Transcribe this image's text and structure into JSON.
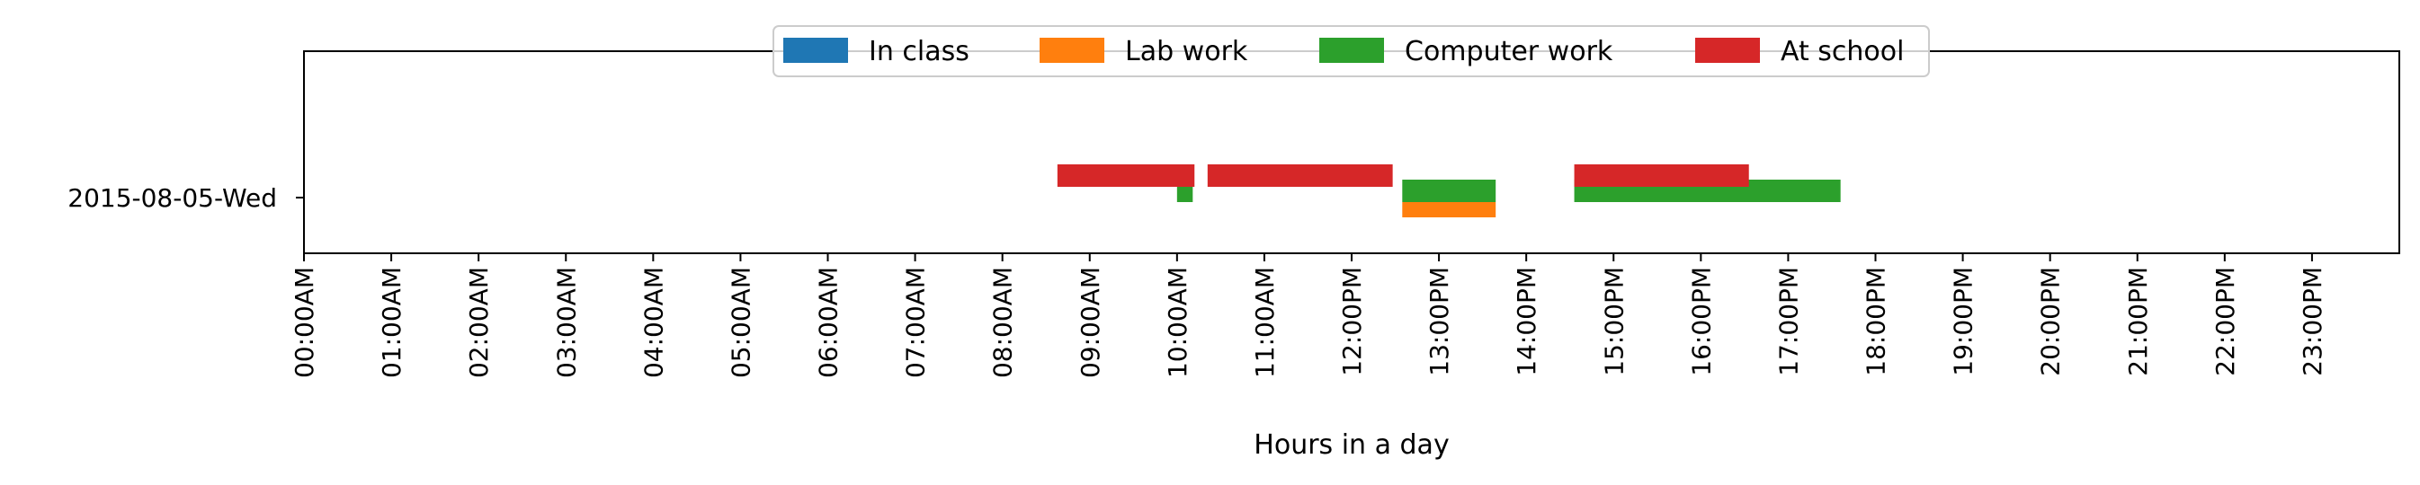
{
  "chart_data": {
    "type": "timeline",
    "xlabel": "Hours in a day",
    "ylabel": "",
    "title": "",
    "xlim": [
      0,
      24
    ],
    "x_ticks": [
      "00:00AM",
      "01:00AM",
      "02:00AM",
      "03:00AM",
      "04:00AM",
      "05:00AM",
      "06:00AM",
      "07:00AM",
      "08:00AM",
      "09:00AM",
      "10:00AM",
      "11:00AM",
      "12:00PM",
      "13:00PM",
      "14:00PM",
      "15:00PM",
      "16:00PM",
      "17:00PM",
      "18:00PM",
      "19:00PM",
      "20:00PM",
      "21:00PM",
      "22:00PM",
      "23:00PM"
    ],
    "categories": [
      "2015-08-05-Wed"
    ],
    "legend_position": "top-center",
    "grid": false,
    "series": [
      {
        "name": "In class",
        "color": "#1f77b4",
        "intervals": []
      },
      {
        "name": "Lab work",
        "color": "#ff7f0e",
        "intervals": [
          [
            12.58,
            13.65
          ]
        ]
      },
      {
        "name": "Computer work",
        "color": "#2ca02c",
        "intervals": [
          [
            10.0,
            10.18
          ],
          [
            12.58,
            13.65
          ],
          [
            14.55,
            17.6
          ]
        ]
      },
      {
        "name": "At school",
        "color": "#d62728",
        "intervals": [
          [
            8.63,
            10.2
          ],
          [
            10.35,
            12.47
          ],
          [
            14.55,
            16.55
          ]
        ]
      }
    ]
  }
}
